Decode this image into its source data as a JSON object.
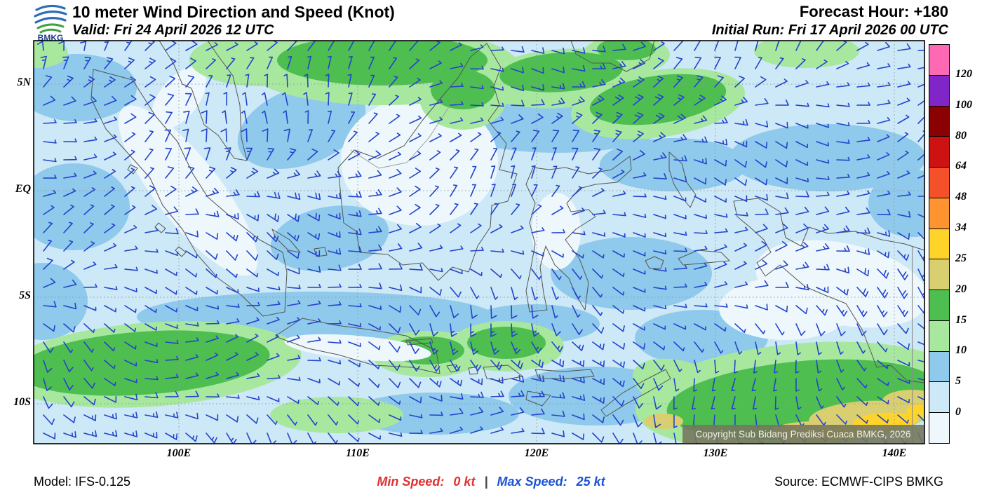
{
  "header": {
    "logo_text": "BMKG",
    "title": "10 meter Wind Direction and Speed (Knot)",
    "valid_label": "Valid: Fri 24 April 2026 12 UTC",
    "forecast_hour_label": "Forecast Hour: +180",
    "initial_run_label": "Initial Run: Fri 17 April 2026 00 UTC"
  },
  "map": {
    "y_axis_labels": [
      "5N",
      "EQ",
      "5S",
      "10S"
    ],
    "x_axis_labels": [
      "100E",
      "110E",
      "120E",
      "130E",
      "140E"
    ],
    "copyright": "Copyright Sub Bidang Prediksi Cuaca BMKG, 2026",
    "barb_color": "#2244CC"
  },
  "colorbar": {
    "labels_top_to_bottom": [
      "120",
      "100",
      "80",
      "64",
      "48",
      "34",
      "25",
      "20",
      "15",
      "10",
      "5",
      "0"
    ],
    "colors_top_to_bottom": [
      "#FF69B4",
      "#8026C9",
      "#8B0000",
      "#CE1212",
      "#F4502A",
      "#FF9330",
      "#FFD42A",
      "#D9CE70",
      "#4EBE50",
      "#A8E89E",
      "#8FC9EB",
      "#CDE8F6",
      "#EEF7FC"
    ]
  },
  "footer": {
    "model_label": "Model: IFS-0.125",
    "min_speed_label": "Min Speed:",
    "min_speed_value": "0 kt",
    "separator": "|",
    "max_speed_label": "Max Speed:",
    "max_speed_value": "25 kt",
    "source_label": "Source: ECMWF-CIPS BMKG",
    "min_color": "#E03131",
    "max_color": "#1C53D6",
    "separator_color": "#444444"
  }
}
